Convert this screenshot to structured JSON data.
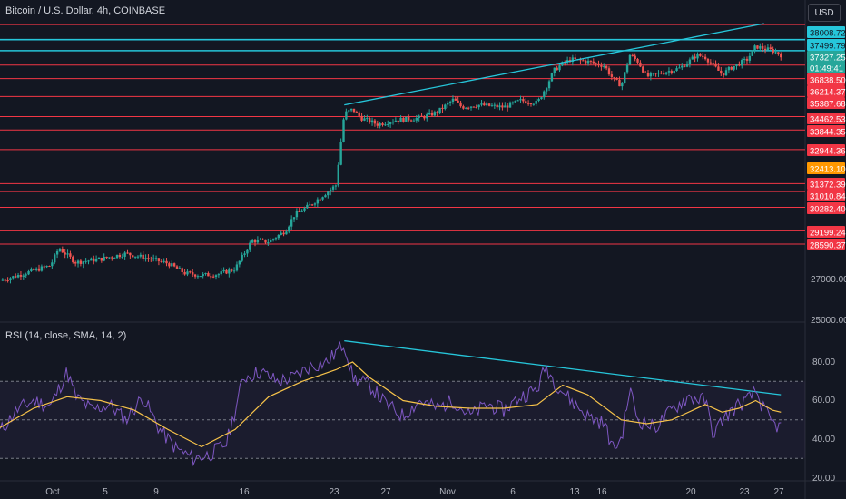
{
  "header": {
    "symbol_title": "Bitcoin / U.S. Dollar, 4h, COINBASE",
    "currency_button": "USD"
  },
  "rsi_panel": {
    "title": "RSI (14, close, SMA, 14, 2)"
  },
  "colors": {
    "background": "#131722",
    "up_candle": "#26a69a",
    "down_candle": "#ef5350",
    "level_line": "#f23645",
    "orange_level": "#ff9800",
    "trend_line": "#26c6da",
    "rsi_line": "#7e57c2",
    "rsi_ma": "#f7c34a"
  },
  "chart_data": [
    {
      "type": "candlestick",
      "title": "Bitcoin / U.S. Dollar, 4h, COINBASE",
      "x_ticks": [
        "Oct",
        "5",
        "9",
        "16",
        "23",
        "27",
        "Nov",
        "6",
        "13",
        "16",
        "20",
        "23",
        "27"
      ],
      "y_ticks": [
        "27000.00",
        "25000.00"
      ],
      "price_labels": [
        {
          "label": "38008.72",
          "color": "#26c6da"
        },
        {
          "label": "37499.79",
          "color": "#26c6da"
        },
        {
          "label": "37327.25",
          "color": "#26a69a"
        },
        {
          "label": "01:49:41",
          "color": "#26a69a"
        },
        {
          "label": "36838.50",
          "color": "#f23645"
        },
        {
          "label": "36214.37",
          "color": "#f23645"
        },
        {
          "label": "35387.68",
          "color": "#f23645"
        },
        {
          "label": "34462.53",
          "color": "#f23645"
        },
        {
          "label": "33844.35",
          "color": "#f23645"
        },
        {
          "label": "32944.36",
          "color": "#f23645"
        },
        {
          "label": "32413.10",
          "color": "#ff9800"
        },
        {
          "label": "31372.39",
          "color": "#f23645"
        },
        {
          "label": "31010.84",
          "color": "#f23645"
        },
        {
          "label": "30282.40",
          "color": "#f23645"
        },
        {
          "label": "29199.24",
          "color": "#f23645"
        },
        {
          "label": "28590.37",
          "color": "#f23645"
        }
      ],
      "horizontal_levels": [
        38700,
        38008.72,
        37499.79,
        36838.5,
        36214.37,
        35387.68,
        34462.53,
        33844.35,
        32944.36,
        32413.1,
        31372.39,
        31010.84,
        30282.4,
        29199.24,
        28590.37
      ],
      "price_path": {
        "x_range": [
          0,
          100
        ],
        "points": [
          [
            0,
            26900
          ],
          [
            3,
            27250
          ],
          [
            6,
            27600
          ],
          [
            7,
            28400
          ],
          [
            9,
            27750
          ],
          [
            12,
            27900
          ],
          [
            15,
            28150
          ],
          [
            18,
            27900
          ],
          [
            20,
            27700
          ],
          [
            22,
            27250
          ],
          [
            24,
            27150
          ],
          [
            26,
            27200
          ],
          [
            28,
            27450
          ],
          [
            29,
            28100
          ],
          [
            30,
            28750
          ],
          [
            32,
            28700
          ],
          [
            34,
            29200
          ],
          [
            35,
            29900
          ],
          [
            37,
            30400
          ],
          [
            39,
            31000
          ],
          [
            40,
            31300
          ],
          [
            41,
            34600
          ],
          [
            42,
            34800
          ],
          [
            43,
            34400
          ],
          [
            45,
            34100
          ],
          [
            47,
            34300
          ],
          [
            50,
            34400
          ],
          [
            52,
            34650
          ],
          [
            54,
            35250
          ],
          [
            55,
            34900
          ],
          [
            57,
            35000
          ],
          [
            60,
            34900
          ],
          [
            62,
            35200
          ],
          [
            64,
            35100
          ],
          [
            65,
            35800
          ],
          [
            66,
            36600
          ],
          [
            67,
            36900
          ],
          [
            68,
            37100
          ],
          [
            70,
            37000
          ],
          [
            72,
            36800
          ],
          [
            73,
            36200
          ],
          [
            74,
            35900
          ],
          [
            75,
            37300
          ],
          [
            76,
            37000
          ],
          [
            77,
            36300
          ],
          [
            79,
            36500
          ],
          [
            81,
            36700
          ],
          [
            83,
            37300
          ],
          [
            84,
            37200
          ],
          [
            85,
            36800
          ],
          [
            86,
            36400
          ],
          [
            87,
            36700
          ],
          [
            89,
            37100
          ],
          [
            90,
            37700
          ],
          [
            91,
            37600
          ],
          [
            92,
            37500
          ],
          [
            93,
            37300
          ]
        ]
      },
      "trend_line": {
        "from": [
          41,
          35000
        ],
        "to": [
          91,
          38750
        ]
      }
    },
    {
      "type": "line",
      "title": "RSI (14, close, SMA, 14, 2)",
      "y_ticks": [
        "80.00",
        "60.00",
        "40.00",
        "20.00"
      ],
      "ylim": [
        18,
        92
      ],
      "bands": [
        30,
        50,
        70
      ],
      "series": [
        {
          "values": [
            [
              0,
              44
            ],
            [
              2,
              55
            ],
            [
              4,
              60
            ],
            [
              6,
              57
            ],
            [
              8,
              75
            ],
            [
              9,
              62
            ],
            [
              11,
              55
            ],
            [
              13,
              58
            ],
            [
              15,
              50
            ],
            [
              17,
              62
            ],
            [
              19,
              45
            ],
            [
              21,
              35
            ],
            [
              23,
              30
            ],
            [
              25,
              32
            ],
            [
              27,
              38
            ],
            [
              29,
              72
            ],
            [
              31,
              75
            ],
            [
              33,
              70
            ],
            [
              35,
              72
            ],
            [
              37,
              78
            ],
            [
              39,
              80
            ],
            [
              41,
              90
            ],
            [
              42,
              72
            ],
            [
              44,
              68
            ],
            [
              46,
              58
            ],
            [
              48,
              52
            ],
            [
              50,
              60
            ],
            [
              52,
              56
            ],
            [
              54,
              60
            ],
            [
              56,
              52
            ],
            [
              58,
              58
            ],
            [
              60,
              55
            ],
            [
              62,
              62
            ],
            [
              64,
              66
            ],
            [
              65,
              78
            ],
            [
              66,
              70
            ],
            [
              68,
              60
            ],
            [
              70,
              52
            ],
            [
              72,
              48
            ],
            [
              73,
              35
            ],
            [
              74,
              40
            ],
            [
              75,
              66
            ],
            [
              76,
              50
            ],
            [
              78,
              46
            ],
            [
              80,
              55
            ],
            [
              82,
              62
            ],
            [
              84,
              60
            ],
            [
              85,
              42
            ],
            [
              86,
              50
            ],
            [
              88,
              58
            ],
            [
              89,
              60
            ],
            [
              90,
              65
            ],
            [
              91,
              55
            ],
            [
              92,
              48
            ],
            [
              93,
              46
            ]
          ]
        },
        {
          "values": [
            [
              0,
              46
            ],
            [
              4,
              56
            ],
            [
              8,
              62
            ],
            [
              12,
              60
            ],
            [
              16,
              55
            ],
            [
              20,
              45
            ],
            [
              24,
              36
            ],
            [
              28,
              45
            ],
            [
              32,
              62
            ],
            [
              36,
              70
            ],
            [
              40,
              76
            ],
            [
              42,
              80
            ],
            [
              44,
              72
            ],
            [
              48,
              60
            ],
            [
              52,
              57
            ],
            [
              56,
              56
            ],
            [
              60,
              56
            ],
            [
              64,
              58
            ],
            [
              67,
              68
            ],
            [
              70,
              63
            ],
            [
              74,
              50
            ],
            [
              77,
              48
            ],
            [
              80,
              50
            ],
            [
              84,
              58
            ],
            [
              86,
              54
            ],
            [
              88,
              56
            ],
            [
              90,
              60
            ],
            [
              92,
              55
            ],
            [
              93,
              54
            ]
          ]
        }
      ],
      "trend_line": {
        "from": [
          41,
          91
        ],
        "to": [
          93,
          63
        ]
      }
    }
  ]
}
